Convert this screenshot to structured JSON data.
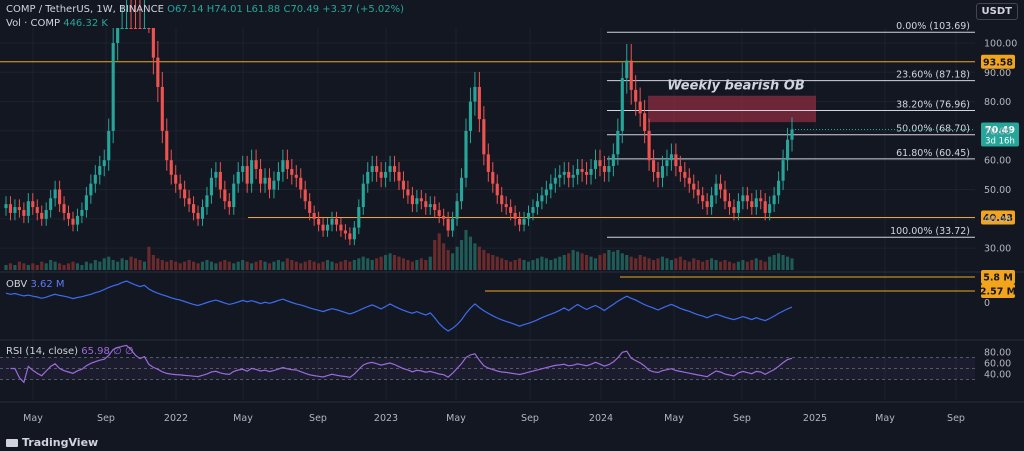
{
  "header": {
    "pair": "COMP / TetherUS",
    "interval": "1W",
    "exchange": "BINANCE",
    "ohlc": "O67.14  H74.01  L61.88  C70.49  +3.37 (+5.02%)",
    "currency": "USDT"
  },
  "volume_legend": {
    "label": "Vol · COMP",
    "value": "446.32 K"
  },
  "obv_legend": {
    "label": "OBV",
    "value": "3.62 M"
  },
  "rsi_legend": {
    "label": "RSI (14, close)",
    "value": "65.98  ∅  ∅"
  },
  "brand": "TradingView",
  "annotation": "Weekly bearish OB",
  "colors": {
    "up": "#26a69a",
    "down": "#ef5350",
    "fib": "#d1d4dc",
    "level": "#f2a51c",
    "obv": "#3d6cf0",
    "rsi": "#9c6bdb",
    "ob_zone": "#8b2c3f"
  },
  "chart_data": [
    {
      "type": "candlestick",
      "x_labels": [
        "May",
        "Sep",
        "2022",
        "May",
        "Sep",
        "2023",
        "May",
        "Sep",
        "2024",
        "May",
        "Sep",
        "2025",
        "May",
        "Sep"
      ],
      "y_ticks": [
        100,
        90,
        80,
        70,
        60,
        50,
        40,
        30
      ],
      "y_tick_labels": [
        "100.00",
        "90.00",
        "80.00",
        "70.00",
        "60.00",
        "50.00",
        "40.00",
        "30.00"
      ],
      "last_price": {
        "value": "70.49",
        "countdown": "3d 16h"
      },
      "fib_levels": [
        {
          "label": "0.00% (103.69)",
          "price": 103.69
        },
        {
          "label": "23.60% (87.18)",
          "price": 87.18
        },
        {
          "label": "38.20% (76.96)",
          "price": 76.96
        },
        {
          "label": "50.00% (68.70)",
          "price": 68.7
        },
        {
          "label": "61.80% (60.45)",
          "price": 60.45
        },
        {
          "label": "100.00% (33.72)",
          "price": 33.72
        }
      ],
      "horizontal_levels": [
        {
          "label": "93.58",
          "price": 93.58
        },
        {
          "label": "40.43",
          "price": 40.43
        }
      ],
      "order_block": {
        "label": "Weekly bearish OB",
        "price_low": 73.0,
        "price_high": 82.0
      },
      "closes": [
        45,
        42,
        44,
        43,
        41,
        46,
        44,
        42,
        40,
        43,
        47,
        50,
        45,
        42,
        40,
        38,
        41,
        43,
        48,
        52,
        55,
        58,
        60,
        70,
        100,
        120,
        140,
        160,
        150,
        135,
        125,
        140,
        110,
        95,
        85,
        70,
        60,
        55,
        52,
        50,
        47,
        45,
        42,
        40,
        44,
        48,
        54,
        56,
        50,
        46,
        44,
        52,
        56,
        58,
        52,
        60,
        57,
        52,
        54,
        50,
        53,
        56,
        60,
        57,
        55,
        54,
        50,
        46,
        42,
        40,
        38,
        36,
        38,
        40,
        38,
        36,
        35,
        33,
        37,
        44,
        52,
        56,
        58,
        56,
        54,
        56,
        58,
        56,
        53,
        50,
        48,
        45,
        47,
        46,
        44,
        45,
        43,
        41,
        40,
        36,
        40,
        46,
        54,
        70,
        80,
        85,
        74,
        62,
        56,
        52,
        48,
        45,
        44,
        42,
        40,
        38,
        40,
        42,
        44,
        46,
        48,
        50,
        52,
        54,
        55,
        56,
        54,
        55,
        57,
        56,
        55,
        57,
        60,
        58,
        56,
        58,
        62,
        70,
        88,
        94,
        84,
        80,
        76,
        70,
        60,
        56,
        54,
        58,
        60,
        62,
        58,
        56,
        54,
        52,
        50,
        48,
        46,
        44,
        48,
        52,
        50,
        46,
        44,
        42,
        46,
        48,
        46,
        44,
        47,
        46,
        42,
        45,
        48,
        53,
        60,
        67,
        70.49
      ],
      "volumes": [
        3,
        4,
        3,
        5,
        4,
        3,
        4,
        3,
        5,
        4,
        6,
        5,
        4,
        3,
        4,
        5,
        4,
        3,
        5,
        4,
        6,
        5,
        7,
        8,
        6,
        5,
        7,
        6,
        8,
        7,
        6,
        5,
        14,
        9,
        7,
        6,
        5,
        6,
        5,
        4,
        5,
        6,
        5,
        4,
        5,
        6,
        5,
        4,
        5,
        6,
        5,
        4,
        5,
        6,
        5,
        4,
        5,
        6,
        5,
        4,
        5,
        6,
        5,
        7,
        6,
        5,
        4,
        5,
        6,
        5,
        4,
        5,
        6,
        5,
        4,
        5,
        6,
        5,
        6,
        7,
        8,
        7,
        6,
        7,
        8,
        9,
        10,
        9,
        8,
        7,
        6,
        5,
        6,
        7,
        6,
        8,
        18,
        22,
        16,
        12,
        10,
        14,
        18,
        24,
        20,
        16,
        14,
        12,
        10,
        9,
        8,
        7,
        6,
        5,
        6,
        7,
        6,
        5,
        6,
        7,
        8,
        7,
        6,
        7,
        8,
        9,
        10,
        12,
        11,
        10,
        9,
        8,
        7,
        9,
        10,
        12,
        11,
        12,
        10,
        9,
        8,
        7,
        9,
        8,
        7,
        6,
        7,
        8,
        7,
        6,
        7,
        8,
        6,
        5,
        7,
        6,
        5,
        6,
        7,
        6,
        5,
        6,
        5,
        4,
        5,
        6,
        5,
        6,
        7,
        6,
        5,
        8,
        9,
        10,
        9,
        8,
        7
      ]
    },
    {
      "type": "line",
      "name": "OBV",
      "levels": [
        {
          "label": "5.8 M"
        },
        {
          "label": "2.57 M"
        }
      ],
      "y_tick_labels": [
        "0"
      ]
    },
    {
      "type": "line",
      "name": "RSI",
      "y_tick_labels": [
        "80.00",
        "60.00",
        "40.00"
      ]
    }
  ]
}
